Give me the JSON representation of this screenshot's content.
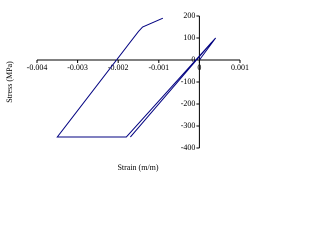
{
  "chart_data": {
    "type": "line",
    "x_label": "Strain (m/m)",
    "y_label": "Stress (MPa)",
    "series": [
      {
        "color": "#000080",
        "x": [
          0,
          0.0004,
          -0.0018,
          -0.0035,
          -0.0015,
          -0.0014,
          -0.0009
        ],
        "values": [
          0,
          100,
          -350,
          -350,
          130,
          150,
          190
        ]
      },
      {
        "color": "#000080",
        "x": [
          -0.0017,
          0.0003
        ],
        "values": [
          -350,
          80
        ]
      }
    ],
    "xlim": [
      -0.004,
      0.001
    ],
    "xticks": [
      -0.004,
      -0.003,
      -0.002,
      -0.001,
      0,
      0.001
    ],
    "ylim": [
      -400,
      200
    ],
    "yticks": [
      -400,
      -300,
      -200,
      -100,
      0,
      100,
      200
    ]
  }
}
